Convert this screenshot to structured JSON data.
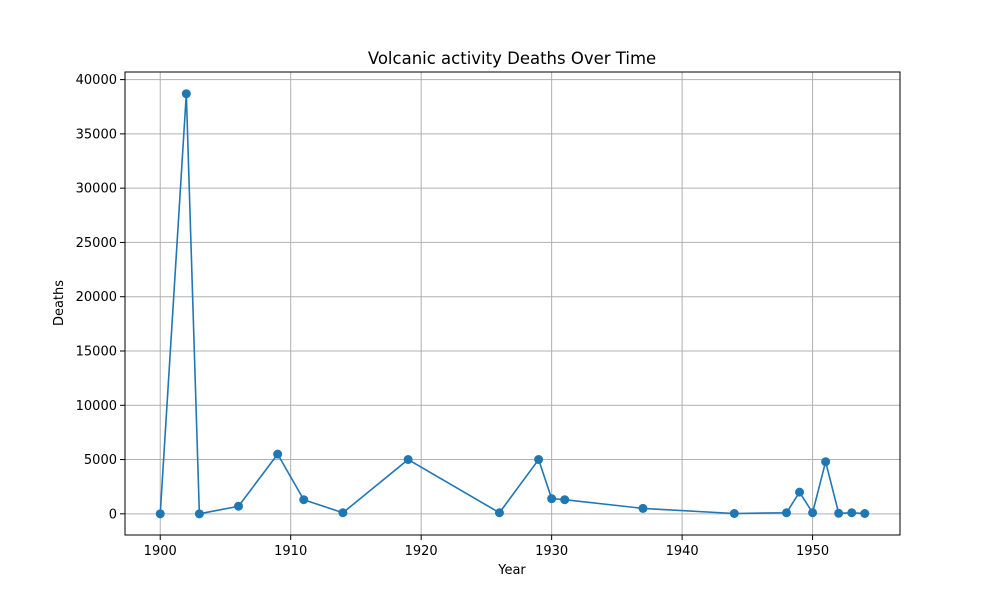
{
  "chart_data": {
    "type": "line",
    "title": "Volcanic activity Deaths Over Time",
    "xlabel": "Year",
    "ylabel": "Deaths",
    "xlim": [
      1897.3,
      1956.7
    ],
    "ylim": [
      -1950,
      40700
    ],
    "x_ticks": [
      1900,
      1910,
      1920,
      1930,
      1940,
      1950
    ],
    "y_ticks": [
      0,
      5000,
      10000,
      15000,
      20000,
      25000,
      30000,
      35000,
      40000
    ],
    "grid": true,
    "line_color": "#1f77b4",
    "marker": "circle",
    "series": [
      {
        "x": [
          1900,
          1902,
          1903,
          1906,
          1909,
          1911,
          1914,
          1919,
          1926,
          1929,
          1930,
          1931,
          1937,
          1944,
          1948,
          1949,
          1950,
          1951,
          1952,
          1953,
          1954
        ],
        "y": [
          0,
          38700,
          0,
          700,
          5500,
          1300,
          100,
          5000,
          100,
          5000,
          1400,
          1300,
          500,
          30,
          100,
          2000,
          100,
          4800,
          50,
          100,
          30
        ]
      }
    ]
  }
}
